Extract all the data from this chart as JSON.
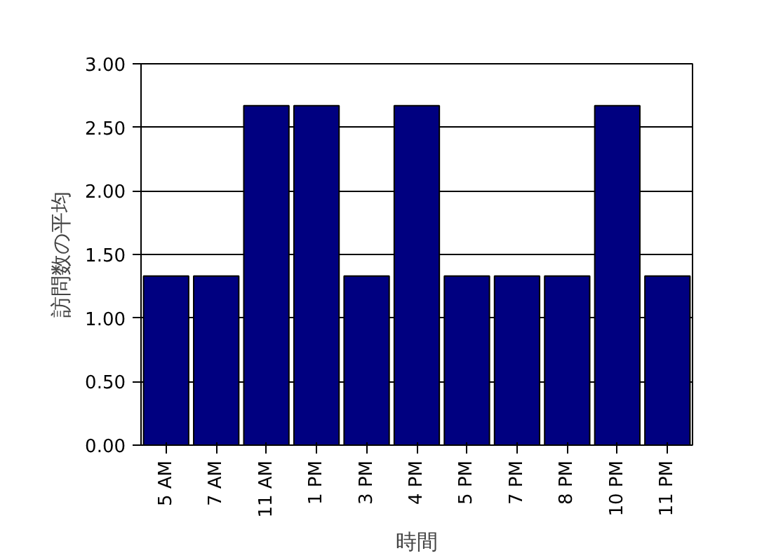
{
  "chart_data": {
    "type": "bar",
    "xlabel": "時間",
    "ylabel": "訪問数の平均",
    "categories": [
      "5 AM",
      "7 AM",
      "11 AM",
      "1 PM",
      "3 PM",
      "4 PM",
      "5 PM",
      "7 PM",
      "8 PM",
      "10 PM",
      "11 PM"
    ],
    "values": [
      1.33,
      1.33,
      2.67,
      2.67,
      1.33,
      2.67,
      1.33,
      1.33,
      1.33,
      2.67,
      1.33
    ],
    "color": "#000080",
    "ylim": [
      0,
      3
    ],
    "yticks": [
      {
        "value": 0,
        "label": "0.00"
      },
      {
        "value": 0.5,
        "label": "0.50"
      },
      {
        "value": 1,
        "label": "1.00"
      },
      {
        "value": 1.5,
        "label": "1.50"
      },
      {
        "value": 2,
        "label": "2.00"
      },
      {
        "value": 2.5,
        "label": "2.50"
      },
      {
        "value": 3,
        "label": "3.00"
      }
    ],
    "grid": "y"
  }
}
